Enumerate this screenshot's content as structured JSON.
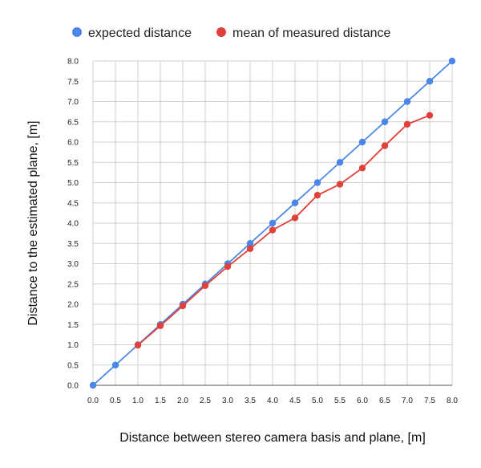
{
  "chart_data": {
    "type": "line",
    "xlabel": "Distance between stereo camera basis and plane, [m]",
    "ylabel": "Distance to the estimated plane, [m]",
    "xlim": [
      0,
      8
    ],
    "ylim": [
      0,
      8
    ],
    "x_ticks": [
      "0.0",
      "0.5",
      "1.0",
      "1.5",
      "2.0",
      "2.5",
      "3.0",
      "3.5",
      "4.0",
      "4.5",
      "5.0",
      "5.5",
      "6.0",
      "6.5",
      "7.0",
      "7.5",
      "8.0"
    ],
    "y_ticks": [
      "0.0",
      "0.5",
      "1.0",
      "1.5",
      "2.0",
      "2.5",
      "3.0",
      "3.5",
      "4.0",
      "4.5",
      "5.0",
      "5.5",
      "6.0",
      "6.5",
      "7.0",
      "7.5",
      "8.0"
    ],
    "grid": true,
    "legend_position": "top",
    "series": [
      {
        "name": "expected distance",
        "color": "#4a86e8",
        "x": [
          0.0,
          0.5,
          1.0,
          1.5,
          2.0,
          2.5,
          3.0,
          3.5,
          4.0,
          4.5,
          5.0,
          5.5,
          6.0,
          6.5,
          7.0,
          7.5,
          8.0
        ],
        "y": [
          0.0,
          0.5,
          1.0,
          1.5,
          2.0,
          2.5,
          3.0,
          3.5,
          4.0,
          4.5,
          5.0,
          5.5,
          6.0,
          6.5,
          7.0,
          7.5,
          8.0
        ]
      },
      {
        "name": "mean of measured distance",
        "color": "#e0413a",
        "x": [
          1.0,
          1.5,
          2.0,
          2.5,
          3.0,
          3.5,
          4.0,
          4.5,
          5.0,
          5.5,
          6.0,
          6.5,
          7.0,
          7.5
        ],
        "y": [
          0.99,
          1.47,
          1.96,
          2.46,
          2.93,
          3.37,
          3.83,
          4.13,
          4.69,
          4.96,
          5.36,
          5.91,
          6.44,
          6.66
        ]
      }
    ]
  }
}
